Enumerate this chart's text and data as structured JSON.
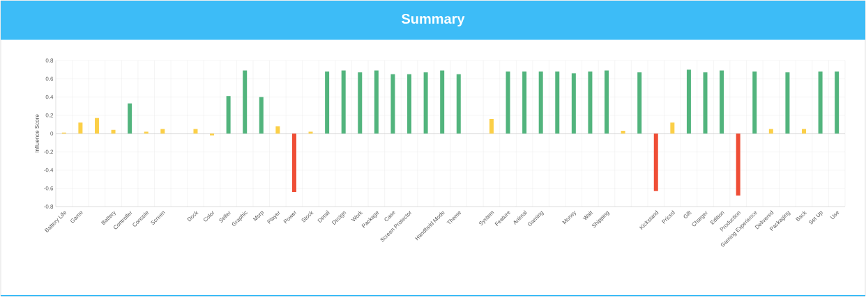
{
  "chart_data": {
    "type": "bar",
    "title": "Summary",
    "ylabel": "Influence Score",
    "categories": [
      "Battery Life",
      "Game",
      null,
      "Battery",
      "Controller",
      "Console",
      "Screen",
      null,
      "Dock",
      "Color",
      "Seller",
      "Graphic",
      "Msrp",
      "Player",
      "Power",
      "Stock",
      "Detail",
      "Design",
      "Work",
      "Package",
      "Case",
      "Screen Protector",
      null,
      "Handheld Mode",
      "Theme",
      null,
      "System",
      "Feature",
      "Animal",
      "Gaming",
      null,
      "Money",
      "Wait",
      "Shipping",
      null,
      null,
      "Kickstand",
      "Priced",
      "Gift",
      "Charger",
      "Edition",
      "Production",
      "Gaming Experience",
      "Delivered",
      "Packaging",
      "Back",
      "Set Up",
      "Use"
    ],
    "values": [
      0.01,
      0.12,
      0.17,
      0.04,
      0.33,
      0.02,
      0.05,
      0,
      0.05,
      -0.02,
      0.41,
      0.69,
      0.4,
      0.08,
      -0.64,
      0.02,
      0.68,
      0.69,
      0.67,
      0.69,
      0.65,
      0.65,
      0.67,
      0.69,
      0.65,
      0,
      0.16,
      0.68,
      0.68,
      0.68,
      0.68,
      0.66,
      0.68,
      0.69,
      0.03,
      0.67,
      -0.63,
      0.12,
      0.7,
      0.67,
      0.69,
      -0.68,
      0.68,
      0.05,
      0.67,
      0.05,
      0.68,
      0.68
    ],
    "colors": [
      "#fbcf47",
      "#fbcf47",
      "#fbcf47",
      "#fbcf47",
      "#52b47d",
      "#fbcf47",
      "#fbcf47",
      "#fbcf47",
      "#fbcf47",
      "#fbcf47",
      "#52b47d",
      "#52b47d",
      "#52b47d",
      "#fbcf47",
      "#ef4e36",
      "#fbcf47",
      "#52b47d",
      "#52b47d",
      "#52b47d",
      "#52b47d",
      "#52b47d",
      "#52b47d",
      "#52b47d",
      "#52b47d",
      "#52b47d",
      "#fbcf47",
      "#fbcf47",
      "#52b47d",
      "#52b47d",
      "#52b47d",
      "#52b47d",
      "#52b47d",
      "#52b47d",
      "#52b47d",
      "#fbcf47",
      "#52b47d",
      "#ef4e36",
      "#fbcf47",
      "#52b47d",
      "#52b47d",
      "#52b47d",
      "#ef4e36",
      "#52b47d",
      "#fbcf47",
      "#52b47d",
      "#fbcf47",
      "#52b47d",
      "#52b47d"
    ],
    "ylim": [
      -0.8,
      0.8
    ],
    "yticks": [
      -0.8,
      -0.6,
      -0.4,
      -0.2,
      0,
      0.2,
      0.4,
      0.6,
      0.8
    ],
    "grid": true
  }
}
